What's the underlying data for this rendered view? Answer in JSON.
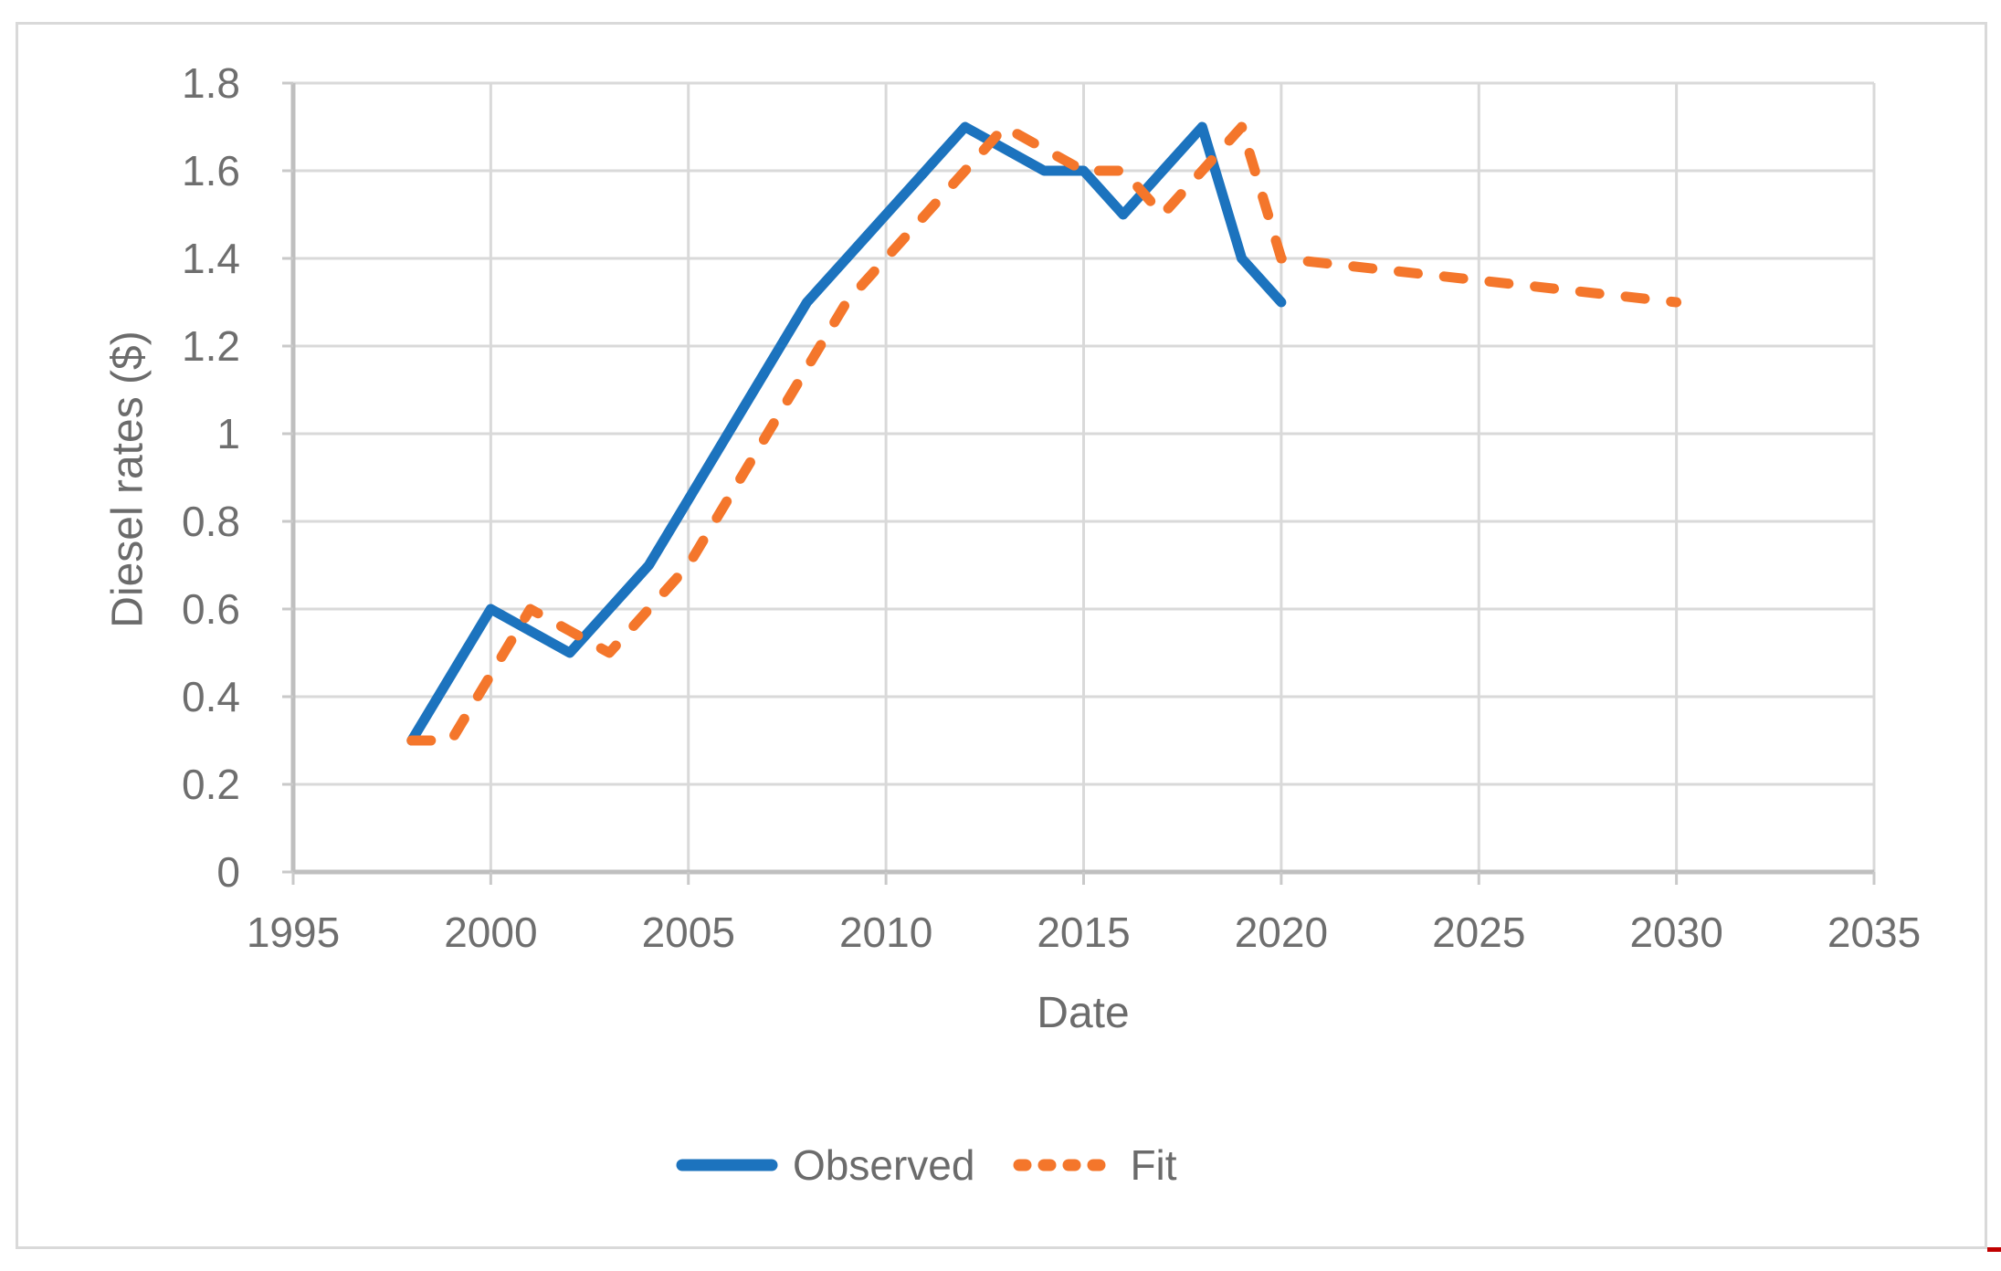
{
  "chart_data": {
    "type": "line",
    "title": "",
    "xlabel": "Date",
    "ylabel": "Diesel rates ($)",
    "xlim": [
      1995,
      2035
    ],
    "ylim": [
      0,
      1.8
    ],
    "grid": true,
    "legend_position": "bottom-center",
    "x_ticks": [
      "1995",
      "2000",
      "2005",
      "2010",
      "2015",
      "2020",
      "2025",
      "2030",
      "2035"
    ],
    "y_ticks": [
      "0",
      "0.2",
      "0.4",
      "0.6",
      "0.8",
      "1",
      "1.2",
      "1.4",
      "1.6",
      "1.8"
    ],
    "series": [
      {
        "name": "Observed",
        "style": "solid",
        "color": "#1c73be",
        "x": [
          1998,
          1999,
          2000,
          2001,
          2002,
          2003,
          2004,
          2005,
          2006,
          2007,
          2008,
          2009,
          2010,
          2011,
          2012,
          2013,
          2014,
          2015,
          2016,
          2017,
          2018,
          2019,
          2020
        ],
        "y": [
          0.3,
          0.45,
          0.6,
          0.55,
          0.5,
          0.6,
          0.7,
          0.85,
          1.0,
          1.15,
          1.3,
          1.4,
          1.5,
          1.6,
          1.7,
          1.65,
          1.6,
          1.6,
          1.5,
          1.6,
          1.7,
          1.4,
          1.3
        ]
      },
      {
        "name": "Fit",
        "style": "dashed",
        "color": "#f4762b",
        "x": [
          1998,
          1999,
          2000,
          2001,
          2002,
          2003,
          2004,
          2005,
          2006,
          2007,
          2008,
          2009,
          2010,
          2011,
          2012,
          2013,
          2014,
          2015,
          2016,
          2017,
          2018,
          2019,
          2020,
          2030
        ],
        "y": [
          0.3,
          0.3,
          0.45,
          0.6,
          0.55,
          0.5,
          0.6,
          0.7,
          0.85,
          1.0,
          1.15,
          1.3,
          1.4,
          1.5,
          1.6,
          1.7,
          1.65,
          1.6,
          1.6,
          1.5,
          1.6,
          1.7,
          1.4,
          1.3
        ]
      }
    ]
  },
  "colors": {
    "background": "#ffffff",
    "frame_border": "#d9d9d9",
    "gridline": "#d9d9d9",
    "axis_line": "#bfbfbf",
    "tick_mark": "#c9c9c9",
    "label_text": "#6e6e6e",
    "red_mark": "#c00000"
  }
}
